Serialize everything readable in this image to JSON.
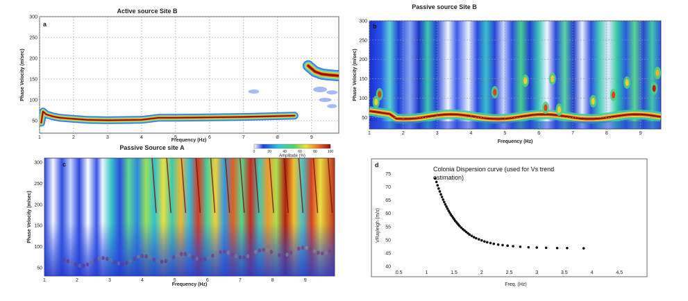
{
  "chart_data": [
    {
      "id": "a",
      "type": "heatmap",
      "title": "Active source  Site B",
      "panel_label": "a",
      "xlabel": "Frequency (Hz)",
      "ylabel": "Phase Velocity (m/sec)",
      "xlim": [
        1,
        9.8
      ],
      "ylim": [
        20,
        300
      ],
      "x_ticks": [
        "1",
        "2",
        "3",
        "4",
        "5",
        "6",
        "7",
        "8",
        "9"
      ],
      "y_ticks": [
        "50",
        "100",
        "150",
        "200",
        "250",
        "300"
      ],
      "grid": true,
      "ridge": {
        "x": [
          1.05,
          1.1,
          1.2,
          1.4,
          1.6,
          1.9,
          2.4,
          3,
          4,
          4.5,
          5,
          6,
          7,
          8,
          8.5
        ],
        "y": [
          45,
          72,
          65,
          60,
          57,
          55,
          52,
          51,
          52,
          57,
          57,
          58,
          59,
          61,
          62
        ]
      },
      "high_branch": {
        "x": [
          8.9,
          9.1,
          9.3,
          9.5,
          9.8
        ],
        "y": [
          182,
          168,
          162,
          160,
          158
        ]
      }
    },
    {
      "id": "b",
      "type": "heatmap",
      "title": "Passive source  Site B",
      "panel_label": "b",
      "xlabel": "Frequency (Hz)",
      "ylabel": "Phase Velocity (m/sec)",
      "xlim": [
        1,
        9.6
      ],
      "ylim": [
        20,
        300
      ],
      "x_ticks": [
        "1",
        "2",
        "3",
        "4",
        "5",
        "6",
        "7",
        "8",
        "9"
      ],
      "y_ticks": [
        "50",
        "100",
        "150",
        "200",
        "250",
        "300"
      ],
      "grid": true
    },
    {
      "id": "c",
      "type": "heatmap",
      "title": "Passive Source  site A",
      "panel_label": "c",
      "xlabel": "Frequency (Hz)",
      "ylabel": "Phase Velocity (m/sec)",
      "xlim": [
        1,
        9.9
      ],
      "ylim": [
        30,
        310
      ],
      "x_ticks": [
        "1",
        "2",
        "3",
        "4",
        "5",
        "6",
        "7",
        "8",
        "9"
      ],
      "y_ticks": [
        "50",
        "100",
        "150",
        "200",
        "250",
        "300"
      ],
      "colorbar": {
        "label": "Amplitude (%)",
        "ticks": [
          "0",
          "20",
          "40",
          "60",
          "80",
          "100"
        ]
      }
    },
    {
      "id": "d",
      "type": "scatter",
      "panel_label": "d",
      "annotation_line1": "Colonia Dispersion curve (used for Vs trend",
      "annotation_line2": "estimation)",
      "xlabel": "Freq. (Hz)",
      "ylabel": "VRayleigh (m/s)",
      "xlim": [
        0,
        5
      ],
      "ylim": [
        40,
        78
      ],
      "x_ticks": [
        "0.5",
        "1",
        "1.5",
        "2",
        "2.5",
        "3",
        "3.5",
        "4",
        "4.5"
      ],
      "y_ticks": [
        "40",
        "45",
        "50",
        "55",
        "60",
        "65",
        "70",
        "75"
      ],
      "x": [
        1.16,
        1.18,
        1.2,
        1.22,
        1.24,
        1.26,
        1.28,
        1.3,
        1.32,
        1.34,
        1.36,
        1.38,
        1.4,
        1.42,
        1.44,
        1.46,
        1.48,
        1.5,
        1.52,
        1.54,
        1.56,
        1.58,
        1.6,
        1.63,
        1.66,
        1.69,
        1.72,
        1.75,
        1.78,
        1.82,
        1.86,
        1.9,
        1.95,
        2.0,
        2.05,
        2.1,
        2.16,
        2.22,
        2.3,
        2.38,
        2.47,
        2.57,
        2.7,
        2.85,
        3.0,
        3.17,
        3.37,
        3.55,
        3.85
      ],
      "y": [
        73.2,
        71.9,
        70.6,
        69.4,
        68.3,
        67.2,
        66.2,
        65.2,
        64.3,
        63.4,
        62.6,
        61.8,
        61.0,
        60.3,
        59.6,
        59.0,
        58.4,
        57.8,
        57.2,
        56.7,
        56.2,
        55.7,
        55.2,
        54.6,
        54.0,
        53.5,
        53.0,
        52.5,
        52.0,
        51.5,
        51.0,
        50.6,
        50.2,
        49.8,
        49.4,
        49.1,
        48.8,
        48.5,
        48.2,
        48.0,
        47.8,
        47.6,
        47.4,
        47.2,
        47.1,
        47.0,
        46.9,
        46.9,
        46.8
      ]
    }
  ]
}
